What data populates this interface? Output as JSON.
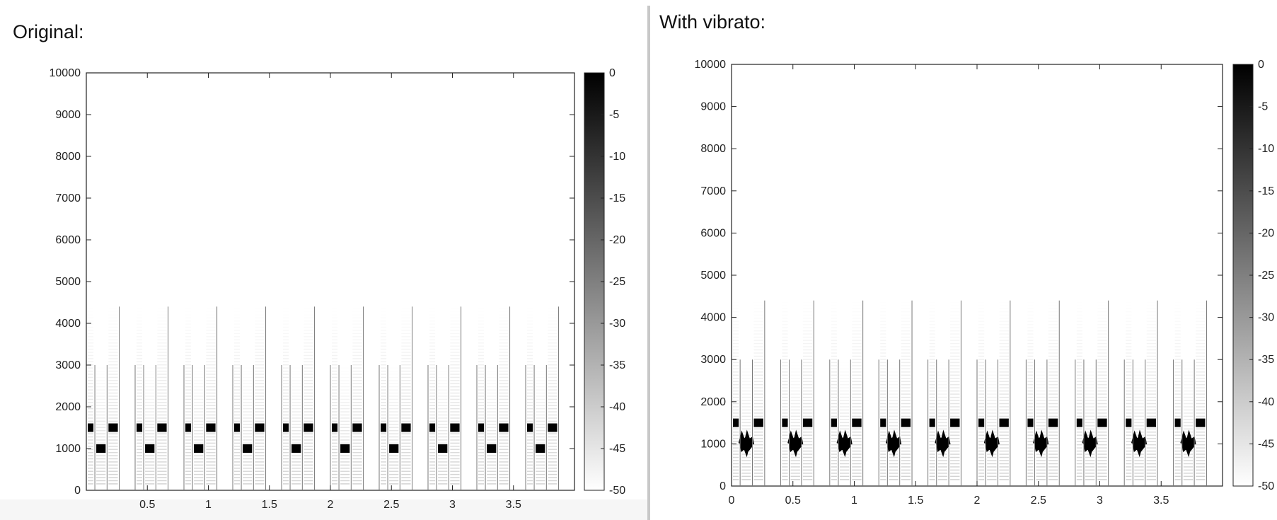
{
  "panels": {
    "left_title": "Original:",
    "right_title": "With vibrato:"
  },
  "chart_data": [
    {
      "type": "heatmap",
      "title": "Original:",
      "xlabel": "",
      "ylabel": "",
      "xlim": [
        0,
        4.0
      ],
      "ylim": [
        0,
        10000
      ],
      "x_ticks": [
        "0.5",
        "1",
        "1.5",
        "2",
        "2.5",
        "3",
        "3.5"
      ],
      "y_ticks": [
        "0",
        "1000",
        "2000",
        "3000",
        "4000",
        "5000",
        "6000",
        "7000",
        "8000",
        "9000",
        "10000"
      ],
      "colorbar": {
        "ticks": [
          "0",
          "-5",
          "-10",
          "-15",
          "-20",
          "-25",
          "-30",
          "-35",
          "-40",
          "-45",
          "-50"
        ],
        "range": [
          -50,
          0
        ],
        "colormap": "gray_reversed"
      },
      "note_period": 0.4,
      "notes": [
        {
          "pitch_hz": 1000,
          "onset": 0.07,
          "duration": 0.1,
          "vibrato": false
        },
        {
          "pitch_hz": 1500,
          "onset": 0.17,
          "duration": 0.1,
          "vibrato": false
        },
        {
          "pitch_hz": 1500,
          "onset": 0.0,
          "duration": 0.07,
          "vibrato": false
        }
      ],
      "note_count": 10
    },
    {
      "type": "heatmap",
      "title": "With vibrato:",
      "xlabel": "",
      "ylabel": "",
      "xlim": [
        0,
        4.0
      ],
      "ylim": [
        0,
        10000
      ],
      "x_ticks": [
        "0",
        "0.5",
        "1",
        "1.5",
        "2",
        "2.5",
        "3",
        "3.5"
      ],
      "y_ticks": [
        "0",
        "1000",
        "2000",
        "3000",
        "4000",
        "5000",
        "6000",
        "7000",
        "8000",
        "9000",
        "10000"
      ],
      "colorbar": {
        "ticks": [
          "0",
          "-5",
          "-10",
          "-15",
          "-20",
          "-25",
          "-30",
          "-35",
          "-40",
          "-45",
          "-50"
        ],
        "range": [
          -50,
          0
        ],
        "colormap": "gray_reversed"
      },
      "note_period": 0.4,
      "notes": [
        {
          "pitch_hz": 1000,
          "onset": 0.07,
          "duration": 0.1,
          "vibrato": true
        },
        {
          "pitch_hz": 1500,
          "onset": 0.17,
          "duration": 0.1,
          "vibrato": false
        },
        {
          "pitch_hz": 1500,
          "onset": 0.0,
          "duration": 0.07,
          "vibrato": false
        }
      ],
      "note_count": 10
    }
  ]
}
